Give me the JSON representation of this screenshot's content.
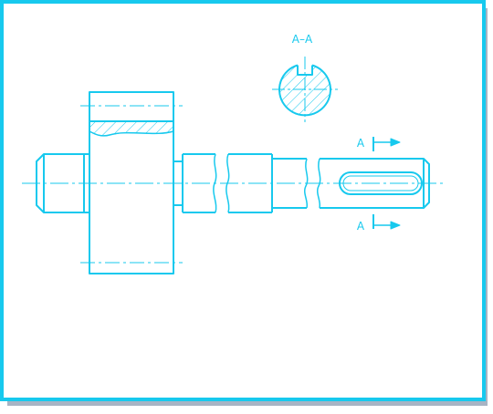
{
  "diagram": {
    "section_title": "A–A",
    "cut_label_top": "A",
    "cut_label_bottom": "A",
    "line_color": "#17c9ee",
    "frame_shadow_color": "#a8b4c4",
    "background_color": "#ffffff"
  }
}
